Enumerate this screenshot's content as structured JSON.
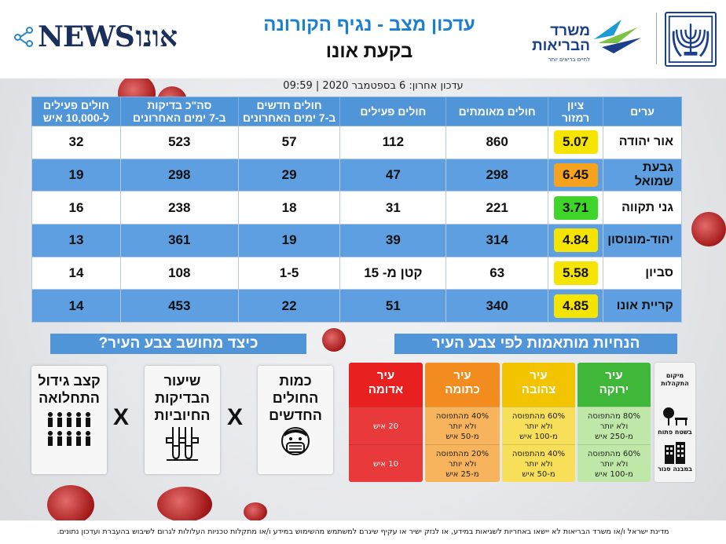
{
  "header": {
    "news_logo_text": "NEWS",
    "news_logo_heb": "אונו",
    "title_line1": "עדכון מצב - נגיף הקורונה",
    "title_line2": "בקעת אונו",
    "ministry_line1": "משרד",
    "ministry_line2": "הבריאות",
    "ministry_tagline": "לחיים בריאים יותר"
  },
  "last_update": "עדכון אחרון: 6 בספטמבר 2020 | 09:59",
  "table": {
    "headers": {
      "city": "ערים",
      "score": "ציון\nרמזור",
      "confirmed": "חולים מאומתים",
      "active": "חולים פעילים",
      "new_7d": "חולים חדשים\nב-7 ימים האחרונים",
      "tests_7d": "סה\"כ בדיקות\nב-7 ימים האחרונים",
      "active_per_10k": "חולים פעילים\nל-10,000 איש"
    },
    "rows": [
      {
        "city": "אור יהודה",
        "score": "5.07",
        "color": "#f5e400",
        "confirmed": "860",
        "active": "112",
        "new_7d": "57",
        "tests_7d": "523",
        "active_per_10k": "32"
      },
      {
        "city": "גבעת שמואל",
        "score": "6.45",
        "color": "#f5a21f",
        "confirmed": "298",
        "active": "47",
        "new_7d": "29",
        "tests_7d": "298",
        "active_per_10k": "19"
      },
      {
        "city": "גני תקווה",
        "score": "3.71",
        "color": "#3ed42a",
        "confirmed": "221",
        "active": "31",
        "new_7d": "18",
        "tests_7d": "238",
        "active_per_10k": "16"
      },
      {
        "city": "יהוד-מונוסון",
        "score": "4.84",
        "color": "#f5e400",
        "confirmed": "314",
        "active": "39",
        "new_7d": "19",
        "tests_7d": "361",
        "active_per_10k": "13"
      },
      {
        "city": "סביון",
        "score": "5.58",
        "color": "#f5e400",
        "confirmed": "63",
        "active": "קטן מ- 15",
        "new_7d": "1-5",
        "tests_7d": "108",
        "active_per_10k": "14"
      },
      {
        "city": "קריית אונו",
        "score": "4.85",
        "color": "#f5e400",
        "confirmed": "340",
        "active": "51",
        "new_7d": "22",
        "tests_7d": "453",
        "active_per_10k": "14"
      }
    ]
  },
  "how_calculated": {
    "title": "כיצד מחושב צבע העיר?",
    "factor_new_cases": "כמות\nהחולים\nהחדשים",
    "factor_positive_rate": "שיעור\nהבדיקות\nהחיוביות",
    "factor_growth_rate": "קצב גידול\nהתחלואה",
    "times": "X"
  },
  "guidelines": {
    "title": "הנחיות מותאמות לפי צבע העיר",
    "legend_title": "מיקום\nהתקהלות",
    "legend_open": "בשטח פתוח",
    "legend_closed": "במבנה סגור",
    "columns": [
      {
        "name": "עיר\nירוקה",
        "color": "#3fb83a",
        "light": "#bfe8a8",
        "open": "80% מהתפוסה\nולא יותר\nמ-250 איש",
        "closed": "60% מהתפוסה\nולא יותר\nמ-100 איש"
      },
      {
        "name": "עיר\nצהובה",
        "color": "#f2c400",
        "light": "#f7df5a",
        "open": "60% מהתפוסה\nולא יותר\nמ-100 איש",
        "closed": "40% מהתפוסה\nולא יותר\nמ-50 איש"
      },
      {
        "name": "עיר\nכתומה",
        "color": "#f28c1f",
        "light": "#f7b45c",
        "open": "40% מהתפוסה\nולא יותר\nמ-50 איש",
        "closed": "20% מהתפוסה\nולא יותר\nמ-25 איש"
      },
      {
        "name": "עיר\nאדומה",
        "color": "#e82020",
        "light": "#e83a3a",
        "open": "20 איש",
        "closed": "10 איש"
      }
    ]
  },
  "footer": "מדינת ישראל ו/או משרד הבריאות לא יישאו באחריות לשגיאות במידע, או לנזק ישיר או עקיף שיגרם למשתמש מהשימוש במידע ו/או מתקלות טכניות העלולות לגרום לשיבוש בהעברת ועדכון נתונים."
}
